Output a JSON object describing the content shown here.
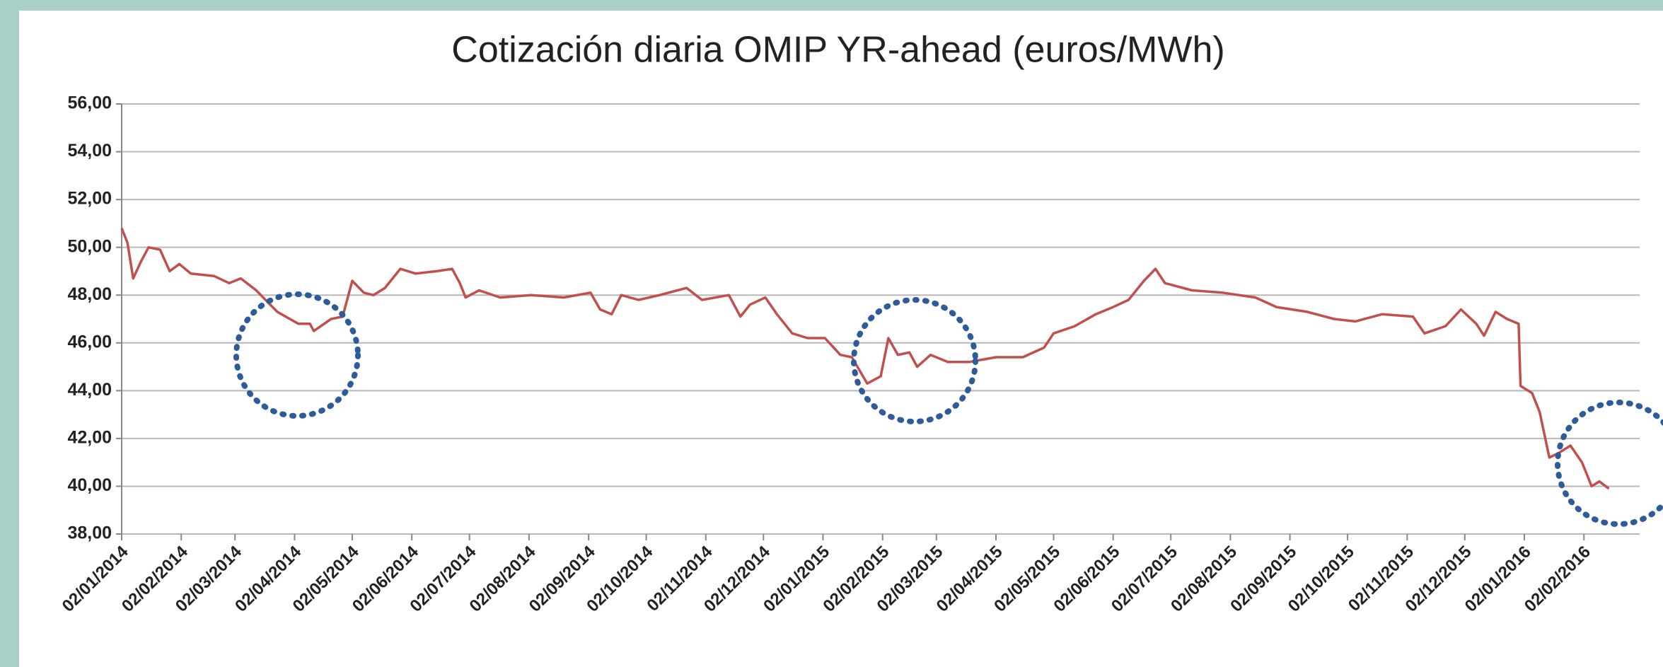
{
  "chart_data": {
    "type": "line",
    "title": "Cotización diaria OMIP  YR-ahead (euros/MWh)",
    "x": [
      "2014-01-02",
      "2014-01-05",
      "2014-01-08",
      "2014-01-12",
      "2014-01-16",
      "2014-01-22",
      "2014-01-27",
      "2014-02-01",
      "2014-02-07",
      "2014-02-19",
      "2014-02-27",
      "2014-03-05",
      "2014-03-13",
      "2014-03-24",
      "2014-04-04",
      "2014-04-10",
      "2014-04-12",
      "2014-04-21",
      "2014-04-27",
      "2014-05-02",
      "2014-05-08",
      "2014-05-13",
      "2014-05-19",
      "2014-05-27",
      "2014-06-04",
      "2014-06-15",
      "2014-06-23",
      "2014-06-27",
      "2014-06-30",
      "2014-07-07",
      "2014-07-18",
      "2014-08-03",
      "2014-08-20",
      "2014-09-03",
      "2014-09-08",
      "2014-09-14",
      "2014-09-19",
      "2014-09-28",
      "2014-10-09",
      "2014-10-23",
      "2014-10-31",
      "2014-11-14",
      "2014-11-20",
      "2014-11-25",
      "2014-12-03",
      "2014-12-09",
      "2014-12-17",
      "2014-12-25",
      "2015-01-03",
      "2015-01-11",
      "2015-01-17",
      "2015-01-25",
      "2015-02-01",
      "2015-02-05",
      "2015-02-10",
      "2015-02-16",
      "2015-02-20",
      "2015-02-27",
      "2015-03-08",
      "2015-03-19",
      "2015-04-02",
      "2015-04-16",
      "2015-04-27",
      "2015-05-02",
      "2015-05-13",
      "2015-05-24",
      "2015-06-02",
      "2015-06-10",
      "2015-06-18",
      "2015-06-24",
      "2015-06-29",
      "2015-07-13",
      "2015-07-29",
      "2015-08-15",
      "2015-08-26",
      "2015-09-11",
      "2015-09-25",
      "2015-10-06",
      "2015-10-20",
      "2015-11-05",
      "2015-11-11",
      "2015-11-22",
      "2015-11-30",
      "2015-12-08",
      "2015-12-12",
      "2015-12-18",
      "2015-12-24",
      "2015-12-30",
      "2015-12-31",
      "2016-01-06",
      "2016-01-10",
      "2016-01-15",
      "2016-01-20",
      "2016-01-26",
      "2016-02-01",
      "2016-02-06",
      "2016-02-10",
      "2016-02-15"
    ],
    "values": [
      50.8,
      50.2,
      48.7,
      49.4,
      50.0,
      49.9,
      49.0,
      49.3,
      48.9,
      48.8,
      48.5,
      48.7,
      48.2,
      47.3,
      46.8,
      46.8,
      46.5,
      47.0,
      47.1,
      48.6,
      48.1,
      48.0,
      48.3,
      49.1,
      48.9,
      49.0,
      49.1,
      48.5,
      47.9,
      48.2,
      47.9,
      48.0,
      47.9,
      48.1,
      47.4,
      47.2,
      48.0,
      47.8,
      48.0,
      48.3,
      47.8,
      48.0,
      47.1,
      47.6,
      47.9,
      47.2,
      46.4,
      46.2,
      46.2,
      45.5,
      45.4,
      44.3,
      44.6,
      46.2,
      45.5,
      45.6,
      45.0,
      45.5,
      45.2,
      45.2,
      45.4,
      45.4,
      45.8,
      46.4,
      46.7,
      47.2,
      47.5,
      47.8,
      48.6,
      49.1,
      48.5,
      48.2,
      48.1,
      47.9,
      47.5,
      47.3,
      47.0,
      46.9,
      47.2,
      47.1,
      46.4,
      46.7,
      47.4,
      46.8,
      46.3,
      47.3,
      47.0,
      46.8,
      44.2,
      43.9,
      43.1,
      41.2,
      41.4,
      41.7,
      41.0,
      40.0,
      40.2,
      39.9
    ],
    "color": "#c0504d",
    "xlim": [
      "2014-01-02",
      "2016-03-02"
    ],
    "xticks": [
      {
        "value": "2014-01-02",
        "label": "02/01/2014"
      },
      {
        "value": "2014-02-02",
        "label": "02/02/2014"
      },
      {
        "value": "2014-03-02",
        "label": "02/03/2014"
      },
      {
        "value": "2014-04-02",
        "label": "02/04/2014"
      },
      {
        "value": "2014-05-02",
        "label": "02/05/2014"
      },
      {
        "value": "2014-06-02",
        "label": "02/06/2014"
      },
      {
        "value": "2014-07-02",
        "label": "02/07/2014"
      },
      {
        "value": "2014-08-02",
        "label": "02/08/2014"
      },
      {
        "value": "2014-09-02",
        "label": "02/09/2014"
      },
      {
        "value": "2014-10-02",
        "label": "02/10/2014"
      },
      {
        "value": "2014-11-02",
        "label": "02/11/2014"
      },
      {
        "value": "2014-12-02",
        "label": "02/12/2014"
      },
      {
        "value": "2015-01-02",
        "label": "02/01/2015"
      },
      {
        "value": "2015-02-02",
        "label": "02/02/2015"
      },
      {
        "value": "2015-03-02",
        "label": "02/03/2015"
      },
      {
        "value": "2015-04-02",
        "label": "02/04/2015"
      },
      {
        "value": "2015-05-02",
        "label": "02/05/2015"
      },
      {
        "value": "2015-06-02",
        "label": "02/06/2015"
      },
      {
        "value": "2015-07-02",
        "label": "02/07/2015"
      },
      {
        "value": "2015-08-02",
        "label": "02/08/2015"
      },
      {
        "value": "2015-09-02",
        "label": "02/09/2015"
      },
      {
        "value": "2015-10-02",
        "label": "02/10/2015"
      },
      {
        "value": "2015-11-02",
        "label": "02/11/2015"
      },
      {
        "value": "2015-12-02",
        "label": "02/12/2015"
      },
      {
        "value": "2016-01-02",
        "label": "02/01/2016"
      },
      {
        "value": "2016-02-02",
        "label": "02/02/2016"
      }
    ],
    "ylim": [
      38,
      56
    ],
    "yticks": [
      {
        "value": 38,
        "label": "38,00"
      },
      {
        "value": 40,
        "label": "40,00"
      },
      {
        "value": 42,
        "label": "42,00"
      },
      {
        "value": 44,
        "label": "44,00"
      },
      {
        "value": 46,
        "label": "46,00"
      },
      {
        "value": 48,
        "label": "48,00"
      },
      {
        "value": 50,
        "label": "50,00"
      },
      {
        "value": 52,
        "label": "52,00"
      },
      {
        "value": 54,
        "label": "54,00"
      },
      {
        "value": 56,
        "label": "56,00"
      }
    ],
    "grid": true
  }
}
